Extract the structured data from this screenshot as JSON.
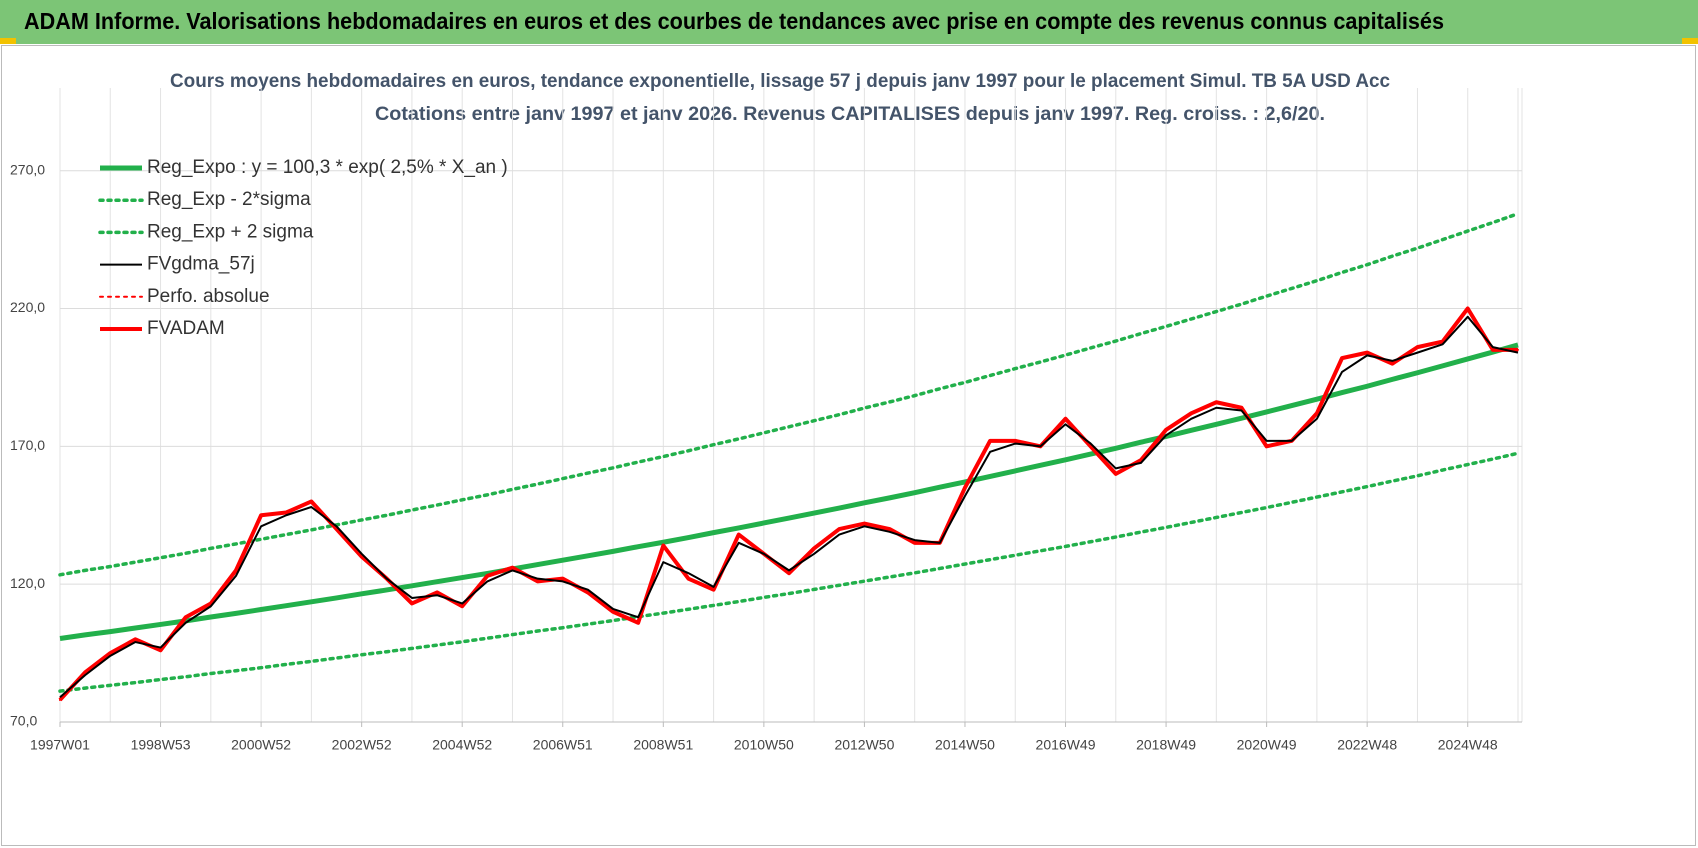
{
  "header": {
    "title": "ADAM Informe. Valorisations hebdomadaires en euros et des courbes de tendances avec prise en compte des revenus connus capitalisés"
  },
  "chart_data": {
    "type": "line",
    "title": "Cours moyens hebdomadaires en euros, tendance exponentielle, lissage 57 j depuis janv 1997 pour le placement Simul. TB 5A USD Acc",
    "subtitle": "Cotations entre janv 1997 et janv 2026. Revenus CAPITALISES depuis janv 1997. Reg. croiss. : 2,6/20.",
    "categories": [
      "1997W01",
      null,
      null,
      null,
      "1998W53",
      null,
      null,
      null,
      "2000W52",
      null,
      null,
      null,
      "2002W52",
      null,
      null,
      null,
      "2004W52",
      null,
      null,
      null,
      "2006W51",
      null,
      null,
      null,
      "2008W51",
      null,
      null,
      null,
      "2010W50",
      null,
      null,
      null,
      "2012W50",
      null,
      null,
      null,
      "2014W50",
      null,
      null,
      null,
      "2016W49",
      null,
      null,
      null,
      "2018W49",
      null,
      null,
      null,
      "2020W49",
      null,
      null,
      null,
      "2022W48",
      null,
      null,
      null,
      "2024W48",
      null,
      null
    ],
    "ylim": [
      70,
      300
    ],
    "yticks": [
      {
        "value": 70,
        "label": "70,0"
      },
      {
        "value": 120,
        "label": "120,0"
      },
      {
        "value": 170,
        "label": "170,0"
      },
      {
        "value": 220,
        "label": "220,0"
      },
      {
        "value": 270,
        "label": "270,0"
      }
    ],
    "grid": true,
    "legend": "top-left",
    "series": [
      {
        "name": "Reg_Expo : y = 100,3 * exp( 2,5% *  X_an )",
        "color": "#22b04b",
        "line_style": "solid",
        "width": 5,
        "values": [
          100.3,
          101.6,
          102.8,
          104.1,
          105.4,
          106.7,
          108.1,
          109.4,
          110.8,
          112.2,
          113.6,
          115.0,
          116.5,
          117.9,
          119.4,
          120.9,
          122.4,
          123.9,
          125.5,
          127.1,
          128.7,
          130.3,
          131.9,
          133.6,
          135.2,
          136.9,
          138.7,
          140.4,
          142.2,
          144.0,
          145.8,
          147.6,
          149.5,
          151.3,
          153.2,
          155.2,
          157.1,
          159.1,
          161.1,
          163.1,
          165.1,
          167.2,
          169.3,
          171.5,
          173.6,
          175.8,
          178.0,
          180.2,
          182.5,
          184.8,
          187.1,
          189.5,
          191.8,
          194.3,
          196.7,
          199.2,
          201.7,
          204.2,
          206.8
        ]
      },
      {
        "name": "Reg_Exp - 2*sigma",
        "color": "#22b04b",
        "line_style": "dotted",
        "width": 3.5,
        "values": [
          81.2,
          82.3,
          83.3,
          84.3,
          85.4,
          86.4,
          87.6,
          88.6,
          89.7,
          90.9,
          92.0,
          93.2,
          94.4,
          95.5,
          96.7,
          97.9,
          99.1,
          100.4,
          101.7,
          103.0,
          104.2,
          105.5,
          106.8,
          108.2,
          109.5,
          110.9,
          112.3,
          113.7,
          115.2,
          116.6,
          118.1,
          119.6,
          121.1,
          122.6,
          124.1,
          125.7,
          127.3,
          128.9,
          130.5,
          132.1,
          133.7,
          135.4,
          137.1,
          138.9,
          140.6,
          142.4,
          144.2,
          146.0,
          147.8,
          149.7,
          151.6,
          153.5,
          155.4,
          157.4,
          159.3,
          161.4,
          163.4,
          165.4,
          167.5
        ]
      },
      {
        "name": "Reg_Exp + 2 sigma",
        "color": "#22b04b",
        "line_style": "dotted",
        "width": 3.5,
        "values": [
          123.4,
          125.0,
          126.4,
          128.0,
          129.6,
          131.2,
          133.0,
          134.6,
          136.3,
          138.0,
          139.7,
          141.5,
          143.3,
          145.0,
          146.9,
          148.7,
          150.6,
          152.4,
          154.4,
          156.3,
          158.3,
          160.3,
          162.2,
          164.3,
          166.3,
          168.4,
          170.6,
          172.7,
          174.9,
          177.1,
          179.3,
          181.5,
          183.9,
          186.1,
          188.4,
          190.9,
          193.2,
          195.7,
          198.2,
          200.6,
          203.1,
          205.7,
          208.2,
          210.9,
          213.5,
          216.2,
          218.9,
          221.6,
          224.5,
          227.3,
          230.1,
          233.1,
          235.9,
          239.0,
          241.9,
          245.0,
          248.1,
          251.2,
          254.4
        ]
      },
      {
        "name": "FVgdma_57j",
        "color": "#000000",
        "line_style": "solid",
        "width": 2,
        "values": [
          79,
          87,
          94,
          99,
          97,
          106,
          112,
          123,
          141,
          145,
          148,
          141,
          131,
          122,
          115,
          116,
          113,
          121,
          125,
          122,
          121,
          118,
          111,
          108,
          128,
          124,
          119,
          135,
          131,
          125,
          131,
          138,
          141,
          139,
          136,
          135,
          152,
          168,
          171,
          170,
          178,
          171,
          162,
          164,
          174,
          180,
          184,
          183,
          172,
          172,
          180,
          197,
          203,
          201,
          204,
          207,
          217,
          206,
          204
        ]
      },
      {
        "name": "Perfo. absolue",
        "color": "#ff0000",
        "line_style": "dotted",
        "width": 2,
        "values": [
          78,
          88,
          95,
          100,
          96,
          108,
          113,
          125,
          145,
          146,
          150,
          140,
          130,
          122,
          113,
          117,
          112,
          123,
          126,
          121,
          122,
          117,
          110,
          106,
          134,
          122,
          118,
          138,
          131,
          124,
          133,
          140,
          142,
          140,
          135,
          135,
          155,
          172,
          172,
          170,
          180,
          170,
          160,
          165,
          176,
          182,
          186,
          184,
          170,
          172,
          182,
          202,
          204,
          200,
          206,
          208,
          220,
          205,
          205
        ]
      },
      {
        "name": "FVADAM",
        "color": "#ff0000",
        "line_style": "solid",
        "width": 4,
        "values": [
          78,
          88,
          95,
          100,
          96,
          108,
          113,
          125,
          145,
          146,
          150,
          140,
          130,
          122,
          113,
          117,
          112,
          123,
          126,
          121,
          122,
          117,
          110,
          106,
          134,
          122,
          118,
          138,
          131,
          124,
          133,
          140,
          142,
          140,
          135,
          135,
          155,
          172,
          172,
          170,
          180,
          170,
          160,
          165,
          176,
          182,
          186,
          184,
          170,
          172,
          182,
          202,
          204,
          200,
          206,
          208,
          220,
          205,
          205
        ]
      }
    ]
  }
}
